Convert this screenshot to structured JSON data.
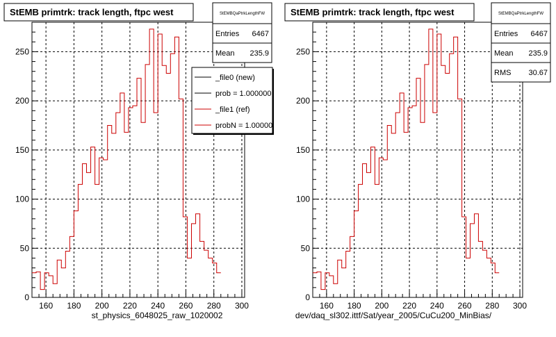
{
  "chart_data": [
    {
      "type": "step",
      "title": "StEMB primtrk: track length, ftpc west",
      "xlabel": "st_physics_6048025_raw_1020002",
      "ylabel": "",
      "xlim": [
        150,
        302
      ],
      "ylim": [
        0,
        280
      ],
      "xticks": [
        "160",
        "180",
        "200",
        "220",
        "240",
        "260",
        "280",
        "300"
      ],
      "yticks": [
        "0",
        "50",
        "100",
        "150",
        "200",
        "250"
      ],
      "grid": true,
      "stats": {
        "name": "StEMBQaPtrkLengthFW",
        "rows": [
          {
            "label": "Entries",
            "value": "6467"
          },
          {
            "label": "Mean",
            "value": "235.9"
          }
        ]
      },
      "legend": {
        "placement": "top-right",
        "entries": [
          {
            "label": "_file0 (new)",
            "color": "#000000"
          },
          {
            "label": "prob = 1.000000",
            "color": "#000000"
          },
          {
            "label": "_file1 (ref)",
            "color": "#cc0000"
          },
          {
            "label": "probN = 1.000000",
            "color": "#cc0000"
          }
        ]
      },
      "series": [
        {
          "color": "#cc0000",
          "bin_width": 3,
          "x_start": 150,
          "values": [
            25,
            26,
            8,
            25,
            22,
            14,
            38,
            30,
            47,
            62,
            88,
            115,
            136,
            127,
            153,
            115,
            142,
            140,
            175,
            167,
            188,
            208,
            168,
            193,
            195,
            223,
            178,
            237,
            273,
            188,
            268,
            236,
            228,
            248,
            265,
            202,
            82,
            40,
            75,
            85,
            57,
            48,
            40,
            35,
            25
          ]
        }
      ]
    },
    {
      "type": "step",
      "title": "StEMB primtrk: track length, ftpc west",
      "xlabel": "dev/daq_sl302.ittf/Sat/year_2005/CuCu200_MinBias/",
      "ylabel": "",
      "xlim": [
        150,
        302
      ],
      "ylim": [
        0,
        280
      ],
      "xticks": [
        "160",
        "180",
        "200",
        "220",
        "240",
        "260",
        "280",
        "300"
      ],
      "yticks": [
        "0",
        "50",
        "100",
        "150",
        "200",
        "250"
      ],
      "grid": true,
      "stats": {
        "name": "StEMBQaPtrkLengthFW",
        "rows": [
          {
            "label": "Entries",
            "value": "6467"
          },
          {
            "label": "Mean",
            "value": "235.9"
          },
          {
            "label": "RMS",
            "value": "30.67"
          }
        ]
      },
      "series": [
        {
          "color": "#cc0000",
          "bin_width": 3,
          "x_start": 150,
          "values": [
            25,
            26,
            8,
            25,
            22,
            14,
            38,
            30,
            47,
            62,
            88,
            115,
            136,
            127,
            153,
            115,
            142,
            140,
            175,
            167,
            188,
            208,
            168,
            193,
            195,
            223,
            178,
            237,
            273,
            188,
            268,
            236,
            228,
            248,
            265,
            202,
            82,
            40,
            75,
            85,
            57,
            48,
            40,
            35,
            25
          ]
        }
      ]
    }
  ]
}
